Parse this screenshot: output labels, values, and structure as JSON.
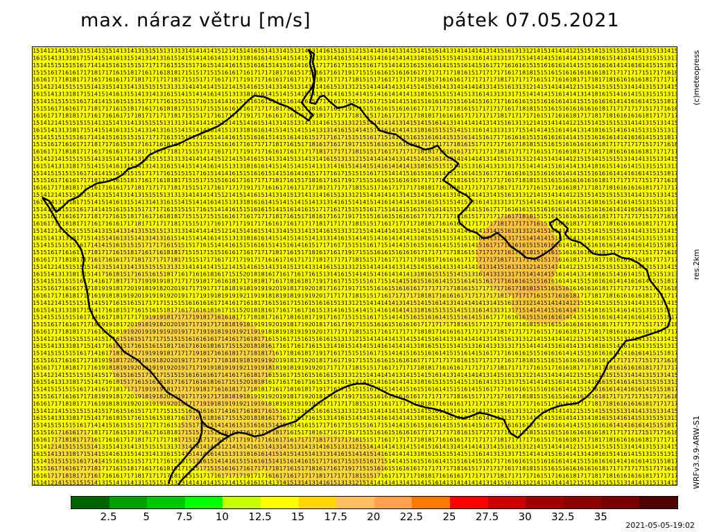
{
  "header": {
    "title": "max. náraz větru [m/s]",
    "date": "pátek 07.05.2021"
  },
  "side_labels": {
    "copyright": "(c)meteopress",
    "resolution": "res.2km",
    "model": "WRFv3.9.9-ARW-S1"
  },
  "timestamp": "2021-05-05-19:02",
  "legend": {
    "colors": [
      "#006400",
      "#00a000",
      "#00c800",
      "#00ff00",
      "#c8ff00",
      "#ffff00",
      "#ffd700",
      "#ffbe64",
      "#ffa050",
      "#ff7800",
      "#ff0000",
      "#c80000",
      "#a00000",
      "#8b0000",
      "#780000",
      "#500000"
    ],
    "ticks": [
      "2.5",
      "5",
      "7.5",
      "10",
      "12.5",
      "15",
      "17.5",
      "20",
      "22.5",
      "25",
      "27.5",
      "30",
      "32.5",
      "35"
    ]
  },
  "map": {
    "grid_rows": 61,
    "grid_cols": 89,
    "sample_rows": [
      [
        14,
        14,
        12,
        14,
        15,
        14,
        15,
        15,
        14,
        13,
        14,
        14,
        13,
        14,
        13,
        14,
        15,
        15,
        13,
        13,
        12,
        14,
        14,
        14
      ],
      [
        16,
        14,
        14,
        13,
        13,
        18,
        16,
        15,
        14,
        15,
        14,
        15,
        13,
        15,
        14,
        13,
        13,
        13,
        16,
        15,
        14,
        14,
        14,
        14
      ],
      [
        15,
        14,
        14,
        15,
        15,
        15,
        16,
        16,
        14,
        14,
        15,
        16,
        14,
        15,
        15,
        17,
        17,
        16,
        16,
        15,
        15,
        15,
        16,
        16
      ],
      [
        15,
        15,
        16,
        16,
        16,
        16,
        17,
        17,
        17,
        17,
        17,
        16,
        15,
        17,
        17,
        16,
        17,
        16,
        17,
        18,
        17,
        15,
        15,
        16
      ],
      [
        16,
        16,
        17,
        17,
        17,
        18,
        17,
        17,
        16,
        16,
        16,
        16,
        17,
        17,
        17,
        17,
        17,
        17,
        17,
        17,
        17,
        15,
        15,
        17
      ]
    ],
    "value_min": 11,
    "value_max": 24
  }
}
